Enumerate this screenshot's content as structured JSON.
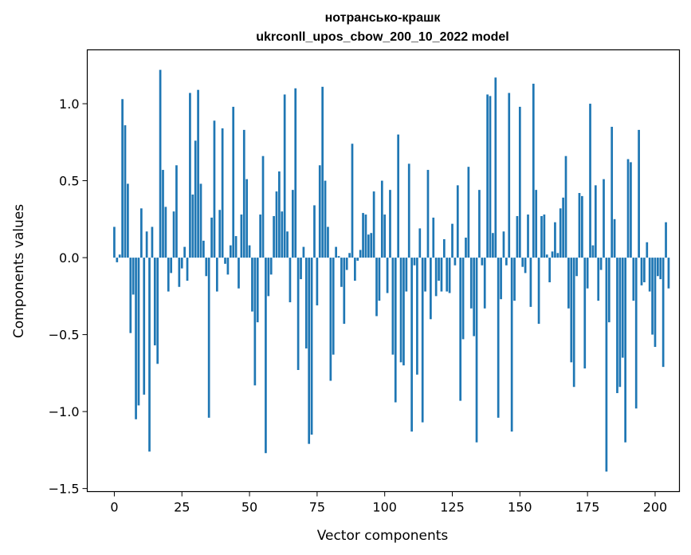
{
  "chart_data": {
    "type": "bar",
    "title_line1": "нотрансько-крашк",
    "title_line2": "ukrconll_upos_cbow_200_10_2022 model",
    "xlabel": "Vector components",
    "ylabel": "Components values",
    "xlim": [
      -10,
      209
    ],
    "ylim": [
      -1.52,
      1.35
    ],
    "xticks": [
      0,
      25,
      50,
      75,
      100,
      125,
      150,
      175,
      200
    ],
    "yticks": [
      -1.5,
      -1.0,
      -0.5,
      0.0,
      0.5,
      1.0
    ],
    "ytick_labels": [
      "−1.5",
      "−1.0",
      "−0.5",
      "0.0",
      "0.5",
      "1.0"
    ],
    "grid": false,
    "bar_color": "#1f77b4",
    "values": [
      0.2,
      -0.03,
      0.02,
      1.03,
      0.86,
      0.48,
      -0.49,
      -0.24,
      -1.05,
      -0.96,
      0.32,
      -0.89,
      0.17,
      -1.26,
      0.2,
      -0.57,
      -0.69,
      1.22,
      0.57,
      0.33,
      -0.22,
      -0.1,
      0.3,
      0.6,
      -0.19,
      -0.07,
      0.07,
      -0.15,
      1.07,
      0.41,
      0.76,
      1.09,
      0.48,
      0.11,
      -0.12,
      -1.04,
      0.26,
      0.89,
      -0.22,
      0.31,
      0.84,
      -0.04,
      -0.11,
      0.08,
      0.98,
      0.14,
      -0.2,
      0.28,
      0.83,
      0.51,
      0.08,
      -0.35,
      -0.83,
      -0.42,
      0.28,
      0.66,
      -1.27,
      -0.25,
      -0.11,
      0.27,
      0.43,
      0.56,
      0.3,
      1.06,
      0.17,
      -0.29,
      0.44,
      1.1,
      -0.73,
      -0.14,
      0.07,
      -0.59,
      -1.21,
      -1.15,
      0.34,
      -0.31,
      0.6,
      1.11,
      0.5,
      0.2,
      -0.8,
      -0.63,
      0.07,
      0.01,
      -0.19,
      -0.43,
      -0.08,
      0.03,
      0.74,
      -0.15,
      -0.02,
      0.05,
      0.29,
      0.28,
      0.15,
      0.16,
      0.43,
      -0.38,
      -0.28,
      0.5,
      0.28,
      -0.23,
      0.44,
      -0.63,
      -0.94,
      0.8,
      -0.68,
      -0.7,
      -0.22,
      0.61,
      -1.13,
      -0.05,
      -0.76,
      0.19,
      -1.07,
      -0.22,
      0.57,
      -0.4,
      0.26,
      -0.25,
      -0.15,
      -0.22,
      0.12,
      -0.22,
      -0.23,
      0.22,
      -0.05,
      0.47,
      -0.93,
      -0.53,
      0.13,
      0.59,
      -0.33,
      -0.51,
      -1.2,
      0.44,
      -0.05,
      -0.33,
      1.06,
      1.05,
      0.16,
      1.17,
      -1.04,
      -0.27,
      0.17,
      -0.05,
      1.07,
      -1.13,
      -0.28,
      0.27,
      0.98,
      -0.06,
      -0.1,
      0.28,
      -0.32,
      1.13,
      0.44,
      -0.43,
      0.27,
      0.28,
      0.02,
      -0.16,
      0.04,
      0.23,
      0.03,
      0.32,
      0.39,
      0.66,
      -0.33,
      -0.68,
      -0.84,
      -0.12,
      0.42,
      0.4,
      -0.72,
      -0.2,
      1.0,
      0.08,
      0.47,
      -0.28,
      -0.08,
      0.51,
      -1.39,
      -0.42,
      0.85,
      0.25,
      -0.88,
      -0.84,
      -0.65,
      -1.2,
      0.64,
      0.62,
      -0.28,
      -0.98,
      0.83,
      -0.18,
      -0.16,
      0.1,
      -0.22,
      -0.5,
      -0.58,
      -0.12,
      -0.14,
      -0.71,
      0.23,
      -0.2
    ]
  }
}
